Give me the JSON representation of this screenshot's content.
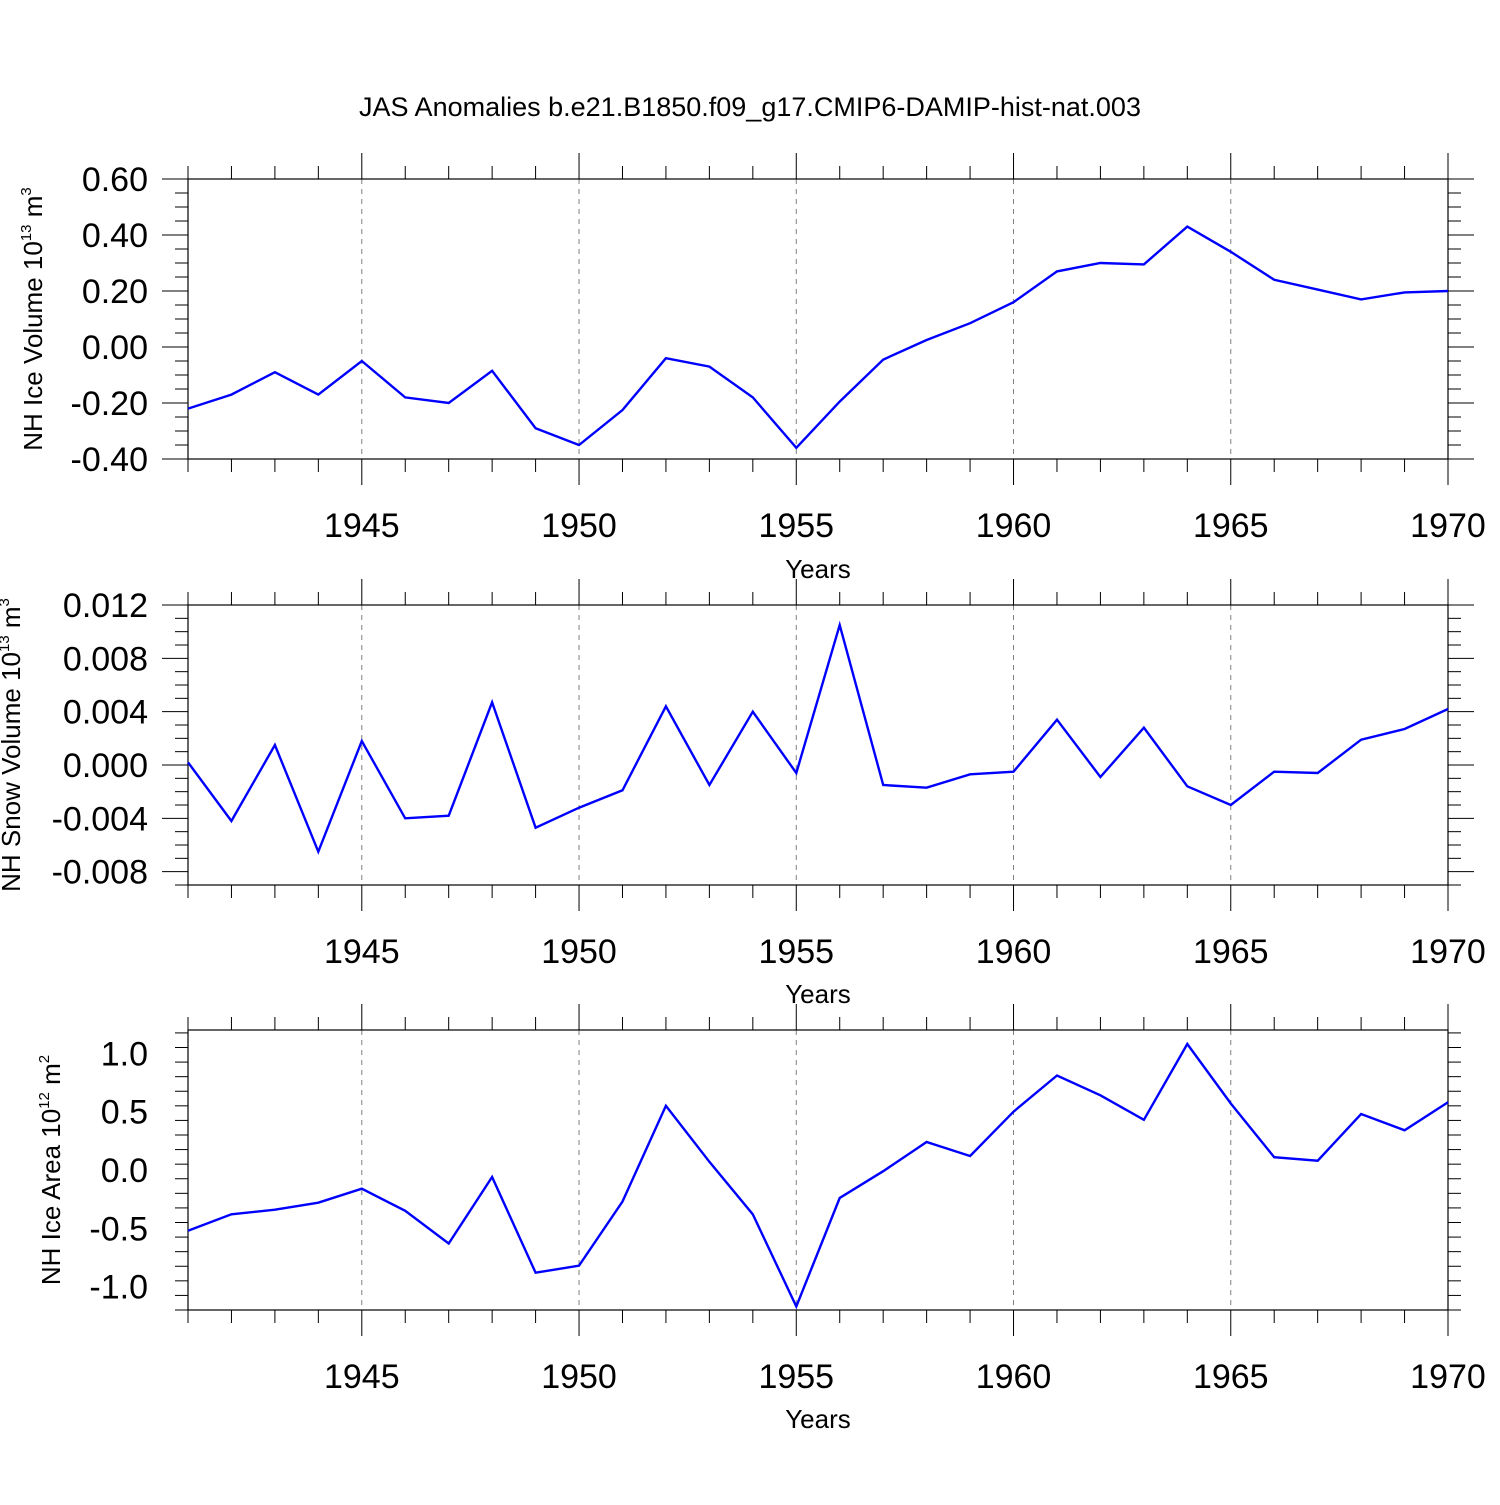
{
  "title": "JAS Anomalies b.e21.B1850.f09_g17.CMIP6-DAMIP-hist-nat.003",
  "colors": {
    "line": "#0000ff",
    "axis": "#000000",
    "grid": "#7f7f7f"
  },
  "chart_data": [
    {
      "type": "line",
      "title": "JAS Anomalies b.e21.B1850.f09_g17.CMIP6-DAMIP-hist-nat.003",
      "xlabel": "Years",
      "ylabel": {
        "main": "NH Ice Volume 10",
        "exp": "13",
        "unit": " m",
        "unit_exp": "3"
      },
      "xlim": [
        1941,
        1970
      ],
      "ylim": [
        -0.4,
        0.6
      ],
      "xticks": [
        "1945",
        "1950",
        "1955",
        "1960",
        "1965",
        "1970"
      ],
      "yticks": [
        "-0.40",
        "-0.20",
        "0.00",
        "0.20",
        "0.40",
        "0.60"
      ],
      "grid": "vertical dashed at major x ticks",
      "x": [
        1941,
        1942,
        1943,
        1944,
        1945,
        1946,
        1947,
        1948,
        1949,
        1950,
        1951,
        1952,
        1953,
        1954,
        1955,
        1956,
        1957,
        1958,
        1959,
        1960,
        1961,
        1962,
        1963,
        1964,
        1965,
        1966,
        1967,
        1968,
        1969,
        1970
      ],
      "series": [
        {
          "name": "NH Ice Volume",
          "values": [
            -0.22,
            -0.17,
            -0.09,
            -0.17,
            -0.05,
            -0.18,
            -0.2,
            -0.085,
            -0.29,
            -0.35,
            -0.225,
            -0.04,
            -0.07,
            -0.18,
            -0.36,
            -0.195,
            -0.045,
            0.025,
            0.085,
            0.16,
            0.27,
            0.3,
            0.295,
            0.43,
            0.34,
            0.24,
            0.205,
            0.17,
            0.195,
            0.2
          ]
        }
      ]
    },
    {
      "type": "line",
      "xlabel": "Years",
      "ylabel": {
        "main": "NH Snow Volume 10",
        "exp": "13",
        "unit": " m",
        "unit_exp": "3"
      },
      "xlim": [
        1941,
        1970
      ],
      "ylim": [
        -0.009,
        0.012
      ],
      "xticks": [
        "1945",
        "1950",
        "1955",
        "1960",
        "1965",
        "1970"
      ],
      "yticks": [
        "-0.008",
        "-0.004",
        "0.000",
        "0.004",
        "0.008",
        "0.012"
      ],
      "grid": "vertical dashed at major x ticks",
      "x": [
        1941,
        1942,
        1943,
        1944,
        1945,
        1946,
        1947,
        1948,
        1949,
        1950,
        1951,
        1952,
        1953,
        1954,
        1955,
        1956,
        1957,
        1958,
        1959,
        1960,
        1961,
        1962,
        1963,
        1964,
        1965,
        1966,
        1967,
        1968,
        1969,
        1970
      ],
      "series": [
        {
          "name": "NH Snow Volume",
          "values": [
            0.0002,
            -0.0042,
            0.0015,
            -0.0065,
            0.0018,
            -0.004,
            -0.0038,
            0.0047,
            -0.0047,
            -0.0032,
            -0.0019,
            0.0044,
            -0.0015,
            0.004,
            -0.0006,
            0.0105,
            -0.0015,
            -0.0017,
            -0.0007,
            -0.0005,
            0.0034,
            -0.0009,
            0.0028,
            -0.0016,
            -0.003,
            -0.0005,
            -0.0006,
            0.0019,
            0.0027,
            0.0042
          ]
        }
      ]
    },
    {
      "type": "line",
      "xlabel": "Years",
      "ylabel": {
        "main": "NH Ice Area 10",
        "exp": "12",
        "unit": " m",
        "unit_exp": "2"
      },
      "xlim": [
        1941,
        1970
      ],
      "ylim": [
        -1.2,
        1.2
      ],
      "xticks": [
        "1945",
        "1950",
        "1955",
        "1960",
        "1965",
        "1970"
      ],
      "yticks": [
        "-1.0",
        "-0.5",
        "0.0",
        "0.5",
        "1.0"
      ],
      "grid": "vertical dashed at major x ticks",
      "x": [
        1941,
        1942,
        1943,
        1944,
        1945,
        1946,
        1947,
        1948,
        1949,
        1950,
        1951,
        1952,
        1953,
        1954,
        1955,
        1956,
        1957,
        1958,
        1959,
        1960,
        1961,
        1962,
        1963,
        1964,
        1965,
        1966,
        1967,
        1968,
        1969,
        1970
      ],
      "series": [
        {
          "name": "NH Ice Area",
          "values": [
            -0.52,
            -0.38,
            -0.34,
            -0.28,
            -0.16,
            -0.35,
            -0.63,
            -0.06,
            -0.88,
            -0.82,
            -0.27,
            0.55,
            0.07,
            -0.38,
            -1.17,
            -0.24,
            -0.01,
            0.24,
            0.12,
            0.5,
            0.81,
            0.64,
            0.43,
            1.08,
            0.57,
            0.11,
            0.08,
            0.48,
            0.34,
            0.58
          ]
        }
      ]
    }
  ]
}
